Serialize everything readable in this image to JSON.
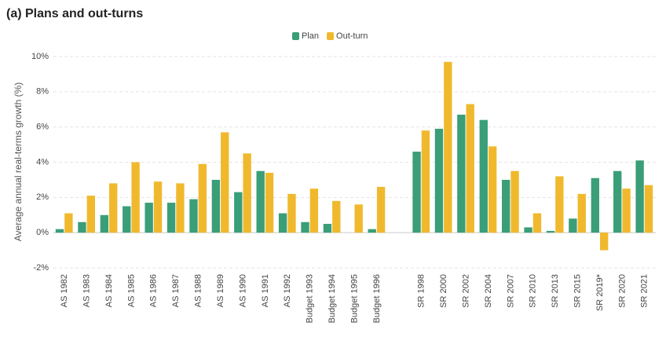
{
  "chart_data": {
    "type": "bar",
    "title": "(a) Plans and out-turns",
    "y_label": "Average annual real-terms growth (%)",
    "categories": [
      "AS 1982",
      "AS 1983",
      "AS 1984",
      "AS 1985",
      "AS 1986",
      "AS 1987",
      "AS 1988",
      "AS 1989",
      "AS 1990",
      "AS 1991",
      "AS 1992",
      "Budget 1993",
      "Budget 1994",
      "Budget 1995",
      "Budget 1996",
      null,
      "SR 1998",
      "SR 2000",
      "SR 2002",
      "SR 2004",
      "SR 2007",
      "SR 2010",
      "SR 2013",
      "SR 2015",
      "SR 2019*",
      "SR 2020",
      "SR 2021"
    ],
    "series": [
      {
        "name": "Plan",
        "color": "#3a9e78",
        "values": [
          0.2,
          0.6,
          1.0,
          1.5,
          1.7,
          1.7,
          1.9,
          3.0,
          2.3,
          3.5,
          1.1,
          0.6,
          0.5,
          null,
          0.2,
          null,
          4.6,
          5.9,
          6.7,
          6.4,
          3.0,
          0.3,
          0.1,
          0.8,
          3.1,
          3.5,
          4.1
        ]
      },
      {
        "name": "Out-turn",
        "color": "#f0b92d",
        "values": [
          1.1,
          2.1,
          2.8,
          4.0,
          2.9,
          2.8,
          3.9,
          5.7,
          4.5,
          3.4,
          2.2,
          2.5,
          1.8,
          1.6,
          2.6,
          null,
          5.8,
          9.7,
          7.3,
          4.9,
          3.5,
          1.1,
          3.2,
          2.2,
          -1.0,
          2.5,
          2.7
        ]
      }
    ],
    "ylim": [
      -2,
      10
    ],
    "yticks": [
      {
        "value": -2,
        "label": "-2%"
      },
      {
        "value": 0,
        "label": "0%"
      },
      {
        "value": 2,
        "label": "2%"
      },
      {
        "value": 4,
        "label": "4%"
      },
      {
        "value": 6,
        "label": "6%"
      },
      {
        "value": 8,
        "label": "8%"
      },
      {
        "value": 10,
        "label": "10%"
      }
    ],
    "grid": true,
    "legend": "top"
  }
}
